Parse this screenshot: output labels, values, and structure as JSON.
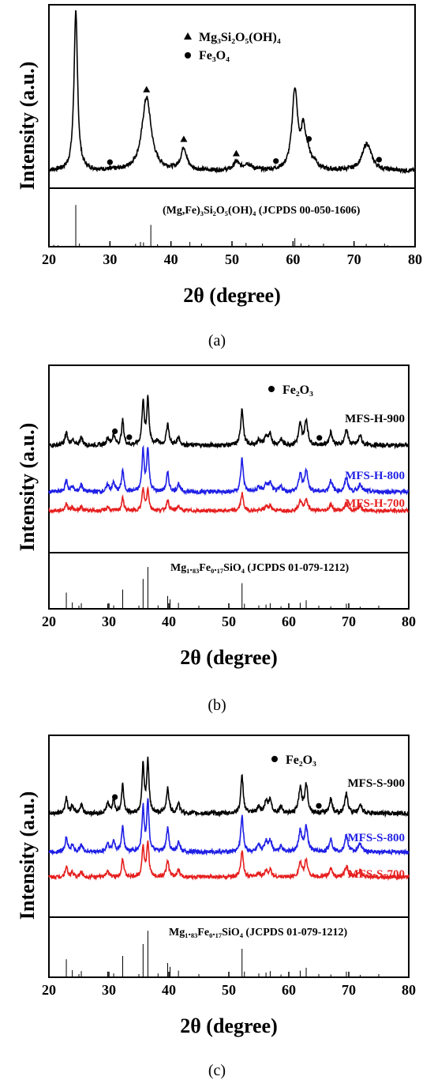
{
  "figure": {
    "panels": [
      {
        "label": "(a)",
        "xlabel": "2θ (degree)",
        "ylabel": "Intensity (a.u.)",
        "xlim": [
          20,
          80
        ],
        "xticks": [
          20,
          30,
          40,
          50,
          60,
          70,
          80
        ],
        "legend": [
          {
            "marker": "triangle",
            "text": "Mg₃Si₂O₅(OH)₄"
          },
          {
            "marker": "circle",
            "text": "Fe₃O₄"
          }
        ],
        "reference_label": "(Mg,Fe)₃Si₂O₅(OH)₄ (JCPDS 00-050-1606)"
      },
      {
        "label": "(b)",
        "xlabel": "2θ (degree)",
        "ylabel": "Intensity (a.u.)",
        "xlim": [
          20,
          80
        ],
        "xticks": [
          20,
          30,
          40,
          50,
          60,
          70,
          80
        ],
        "legend": [
          {
            "marker": "circle",
            "text": "Fe₂O₃"
          }
        ],
        "reference_label": "Mg₁.₈₃Fe₀.₁₇SiO₄ (JCPDS 01-079-1212)"
      },
      {
        "label": "(c)",
        "xlabel": "2θ (degree)",
        "ylabel": "Intensity (a.u.)",
        "xlim": [
          20,
          80
        ],
        "xticks": [
          20,
          30,
          40,
          50,
          60,
          70,
          80
        ],
        "legend": [
          {
            "marker": "circle",
            "text": "Fe₂O₃"
          }
        ],
        "reference_label": "Mg₁.₈₃Fe₀.₁₇SiO₄ (JCPDS 01-079-1212)"
      }
    ]
  },
  "chart_data": [
    {
      "type": "line",
      "title": "",
      "xlabel": "2θ (degree)",
      "ylabel": "Intensity (a.u.)",
      "xlim": [
        20,
        80
      ],
      "series": [
        {
          "color": "#000000",
          "baseline": 0.08,
          "noise": 0.012,
          "peaks": [
            [
              24.4,
              1.0,
              0.35
            ],
            [
              36.0,
              0.46,
              0.9
            ],
            [
              42.1,
              0.14,
              0.55
            ],
            [
              50.7,
              0.05,
              0.5
            ],
            [
              52.5,
              0.04,
              0.8
            ],
            [
              60.3,
              0.5,
              0.55
            ],
            [
              61.7,
              0.23,
              0.45
            ],
            [
              62.5,
              0.08,
              0.5
            ],
            [
              63.6,
              0.04,
              0.5
            ],
            [
              72.1,
              0.17,
              0.9
            ]
          ],
          "markers": [
            [
              36.0,
              "triangle"
            ],
            [
              42.1,
              "triangle"
            ],
            [
              50.7,
              "triangle"
            ],
            [
              30.0,
              "circle"
            ],
            [
              57.2,
              "circle"
            ],
            [
              62.6,
              "circle"
            ],
            [
              74.1,
              "circle"
            ]
          ]
        }
      ],
      "reference_pattern": {
        "positions": [
          20.8,
          21.5,
          24.4,
          34.2,
          35.0,
          35.5,
          36.7,
          37.8,
          43.1,
          52.3,
          60.3,
          61.3,
          62.6,
          72.0,
          75.5
        ],
        "intensities": [
          0.04,
          0.03,
          0.88,
          0.06,
          0.1,
          0.09,
          0.46,
          0.05,
          0.1,
          0.08,
          0.18,
          0.07,
          0.04,
          0.06,
          0.03
        ]
      }
    },
    {
      "type": "line",
      "title": "",
      "xlabel": "2θ (degree)",
      "ylabel": "Intensity (a.u.)",
      "xlim": [
        20,
        80
      ],
      "series": [
        {
          "name": "MFS-H-900",
          "color": "#000000",
          "offset": 0.6,
          "scale": 0.36,
          "noise": 0.012,
          "peaks": [
            [
              22.9,
              0.2,
              0.25
            ],
            [
              23.9,
              0.1,
              0.2
            ],
            [
              25.4,
              0.13,
              0.25
            ],
            [
              29.8,
              0.12,
              0.25
            ],
            [
              30.8,
              0.17,
              0.25
            ],
            [
              32.3,
              0.4,
              0.22
            ],
            [
              35.7,
              0.7,
              0.22
            ],
            [
              36.5,
              0.75,
              0.22
            ],
            [
              38.0,
              0.06,
              0.3
            ],
            [
              39.8,
              0.35,
              0.25
            ],
            [
              41.6,
              0.14,
              0.25
            ],
            [
              52.2,
              0.6,
              0.25
            ],
            [
              55.0,
              0.08,
              0.3
            ],
            [
              56.2,
              0.14,
              0.3
            ],
            [
              56.9,
              0.16,
              0.3
            ],
            [
              58.7,
              0.09,
              0.3
            ],
            [
              61.9,
              0.33,
              0.3
            ],
            [
              62.9,
              0.4,
              0.3
            ],
            [
              67.0,
              0.21,
              0.3
            ],
            [
              69.6,
              0.26,
              0.3
            ],
            [
              71.9,
              0.16,
              0.3
            ]
          ],
          "markers": [
            [
              31.0,
              "circle"
            ],
            [
              33.4,
              "circle"
            ],
            [
              65.1,
              "circle"
            ]
          ]
        },
        {
          "name": "MFS-H-800",
          "color": "#1f1fe6",
          "offset": 0.33,
          "scale": 0.33,
          "noise": 0.012,
          "peaks": [
            [
              22.9,
              0.2,
              0.25
            ],
            [
              23.9,
              0.1,
              0.2
            ],
            [
              25.4,
              0.13,
              0.25
            ],
            [
              29.8,
              0.12,
              0.25
            ],
            [
              30.8,
              0.16,
              0.25
            ],
            [
              32.3,
              0.38,
              0.22
            ],
            [
              35.7,
              0.72,
              0.22
            ],
            [
              36.5,
              0.75,
              0.22
            ],
            [
              39.8,
              0.33,
              0.25
            ],
            [
              41.6,
              0.14,
              0.25
            ],
            [
              52.2,
              0.58,
              0.25
            ],
            [
              55.0,
              0.08,
              0.3
            ],
            [
              56.2,
              0.13,
              0.3
            ],
            [
              56.9,
              0.15,
              0.3
            ],
            [
              58.7,
              0.09,
              0.3
            ],
            [
              61.9,
              0.3,
              0.3
            ],
            [
              62.9,
              0.38,
              0.3
            ],
            [
              67.0,
              0.2,
              0.3
            ],
            [
              69.6,
              0.25,
              0.3
            ],
            [
              71.9,
              0.15,
              0.3
            ]
          ]
        },
        {
          "name": "MFS-H-700",
          "color": "#e61f1f",
          "offset": 0.22,
          "scale": 0.2,
          "noise": 0.01,
          "peaks": [
            [
              22.9,
              0.2,
              0.25
            ],
            [
              23.9,
              0.1,
              0.2
            ],
            [
              25.4,
              0.13,
              0.25
            ],
            [
              29.8,
              0.12,
              0.25
            ],
            [
              32.3,
              0.36,
              0.22
            ],
            [
              35.7,
              0.62,
              0.22
            ],
            [
              36.5,
              0.6,
              0.22
            ],
            [
              39.8,
              0.3,
              0.25
            ],
            [
              41.6,
              0.14,
              0.25
            ],
            [
              52.2,
              0.5,
              0.25
            ],
            [
              56.2,
              0.12,
              0.3
            ],
            [
              56.9,
              0.14,
              0.3
            ],
            [
              61.9,
              0.28,
              0.3
            ],
            [
              62.9,
              0.33,
              0.3
            ],
            [
              67.0,
              0.18,
              0.3
            ],
            [
              69.6,
              0.22,
              0.3
            ],
            [
              71.9,
              0.14,
              0.3
            ]
          ]
        }
      ],
      "reference_pattern": {
        "positions": [
          22.9,
          23.9,
          25.4,
          29.8,
          30.8,
          32.3,
          35.7,
          36.5,
          38.2,
          39.8,
          40.2,
          41.6,
          52.2,
          52.6,
          55.0,
          56.2,
          56.9,
          58.7,
          61.9,
          62.9,
          67.0,
          69.6,
          71.9
        ],
        "intensities": [
          0.38,
          0.15,
          0.13,
          0.12,
          0.08,
          0.45,
          0.7,
          0.98,
          0.08,
          0.3,
          0.22,
          0.14,
          0.6,
          0.12,
          0.08,
          0.1,
          0.13,
          0.06,
          0.14,
          0.2,
          0.06,
          0.12,
          0.05
        ]
      }
    },
    {
      "type": "line",
      "title": "",
      "xlabel": "2θ (degree)",
      "ylabel": "Intensity (a.u.)",
      "xlim": [
        20,
        80
      ],
      "series": [
        {
          "name": "MFS-S-900",
          "color": "#000000",
          "offset": 0.6,
          "scale": 0.38,
          "noise": 0.013,
          "peaks": [
            [
              22.9,
              0.25,
              0.25
            ],
            [
              23.9,
              0.12,
              0.2
            ],
            [
              25.4,
              0.15,
              0.25
            ],
            [
              29.8,
              0.16,
              0.25
            ],
            [
              30.8,
              0.22,
              0.25
            ],
            [
              32.3,
              0.45,
              0.22
            ],
            [
              35.7,
              0.75,
              0.22
            ],
            [
              36.5,
              0.8,
              0.22
            ],
            [
              39.8,
              0.4,
              0.25
            ],
            [
              41.6,
              0.16,
              0.25
            ],
            [
              52.2,
              0.58,
              0.25
            ],
            [
              55.0,
              0.1,
              0.3
            ],
            [
              56.2,
              0.18,
              0.3
            ],
            [
              56.9,
              0.2,
              0.3
            ],
            [
              58.7,
              0.1,
              0.3
            ],
            [
              61.9,
              0.38,
              0.3
            ],
            [
              62.9,
              0.45,
              0.3
            ],
            [
              67.0,
              0.22,
              0.3
            ],
            [
              69.6,
              0.3,
              0.3
            ],
            [
              71.9,
              0.15,
              0.3
            ]
          ],
          "markers": [
            [
              31.0,
              "circle"
            ],
            [
              65.0,
              "circle"
            ]
          ]
        },
        {
          "name": "MFS-S-800",
          "color": "#1f1fe6",
          "offset": 0.37,
          "scale": 0.35,
          "noise": 0.012,
          "peaks": [
            [
              22.9,
              0.25,
              0.25
            ],
            [
              23.9,
              0.12,
              0.2
            ],
            [
              25.4,
              0.14,
              0.25
            ],
            [
              29.8,
              0.15,
              0.25
            ],
            [
              30.8,
              0.18,
              0.25
            ],
            [
              32.3,
              0.45,
              0.22
            ],
            [
              35.7,
              0.75,
              0.22
            ],
            [
              36.5,
              0.85,
              0.22
            ],
            [
              39.8,
              0.4,
              0.25
            ],
            [
              41.6,
              0.16,
              0.25
            ],
            [
              52.2,
              0.6,
              0.25
            ],
            [
              55.0,
              0.1,
              0.3
            ],
            [
              56.2,
              0.17,
              0.3
            ],
            [
              56.9,
              0.19,
              0.3
            ],
            [
              58.7,
              0.1,
              0.3
            ],
            [
              61.9,
              0.35,
              0.3
            ],
            [
              62.9,
              0.42,
              0.3
            ],
            [
              67.0,
              0.22,
              0.3
            ],
            [
              69.6,
              0.28,
              0.3
            ],
            [
              71.9,
              0.15,
              0.3
            ]
          ]
        },
        {
          "name": "MFS-S-700",
          "color": "#e61f1f",
          "offset": 0.22,
          "scale": 0.28,
          "noise": 0.011,
          "peaks": [
            [
              22.9,
              0.22,
              0.25
            ],
            [
              23.9,
              0.1,
              0.2
            ],
            [
              25.4,
              0.12,
              0.25
            ],
            [
              29.8,
              0.14,
              0.25
            ],
            [
              32.3,
              0.4,
              0.22
            ],
            [
              35.7,
              0.65,
              0.22
            ],
            [
              36.5,
              0.72,
              0.22
            ],
            [
              39.8,
              0.35,
              0.25
            ],
            [
              41.6,
              0.15,
              0.25
            ],
            [
              52.2,
              0.55,
              0.25
            ],
            [
              55.0,
              0.08,
              0.3
            ],
            [
              56.2,
              0.12,
              0.3
            ],
            [
              56.9,
              0.14,
              0.3
            ],
            [
              61.9,
              0.3,
              0.3
            ],
            [
              62.9,
              0.35,
              0.3
            ],
            [
              67.0,
              0.18,
              0.3
            ],
            [
              69.6,
              0.24,
              0.3
            ],
            [
              71.9,
              0.14,
              0.3
            ]
          ]
        }
      ],
      "reference_pattern": {
        "positions": [
          22.9,
          23.9,
          25.4,
          29.8,
          30.8,
          32.3,
          35.7,
          36.5,
          38.2,
          39.8,
          40.2,
          41.6,
          52.2,
          52.6,
          55.0,
          56.2,
          56.9,
          58.7,
          61.9,
          62.9,
          67.0,
          69.6,
          71.9
        ],
        "intensities": [
          0.38,
          0.15,
          0.13,
          0.12,
          0.08,
          0.45,
          0.7,
          0.98,
          0.08,
          0.3,
          0.22,
          0.14,
          0.6,
          0.12,
          0.08,
          0.1,
          0.13,
          0.06,
          0.14,
          0.2,
          0.06,
          0.12,
          0.05
        ]
      }
    }
  ]
}
